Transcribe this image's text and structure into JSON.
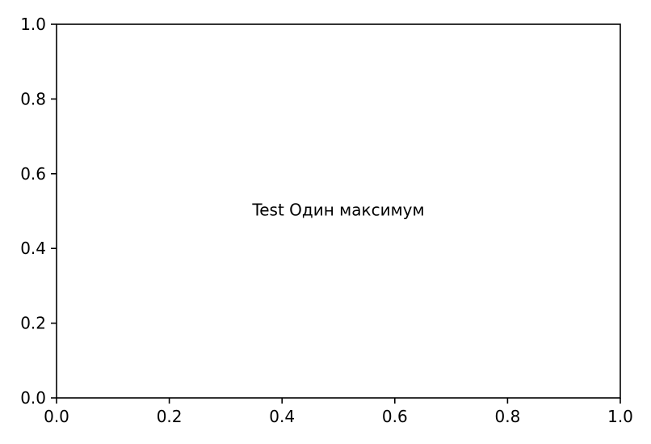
{
  "chart_data": {
    "type": "scatter",
    "title": "",
    "xlabel": "",
    "ylabel": "",
    "xlim": [
      0.0,
      1.0
    ],
    "ylim": [
      0.0,
      1.0
    ],
    "x_ticks": [
      0.0,
      0.2,
      0.4,
      0.6,
      0.8,
      1.0
    ],
    "y_ticks": [
      0.0,
      0.2,
      0.4,
      0.6,
      0.8,
      1.0
    ],
    "x_tick_labels": [
      "0.0",
      "0.2",
      "0.4",
      "0.6",
      "0.8",
      "1.0"
    ],
    "y_tick_labels": [
      "0.0",
      "0.2",
      "0.4",
      "0.6",
      "0.8",
      "1.0"
    ],
    "grid": false,
    "series": [],
    "annotations": [
      {
        "text": "Test Один максимум",
        "x": 0.5,
        "y": 0.5
      }
    ]
  }
}
